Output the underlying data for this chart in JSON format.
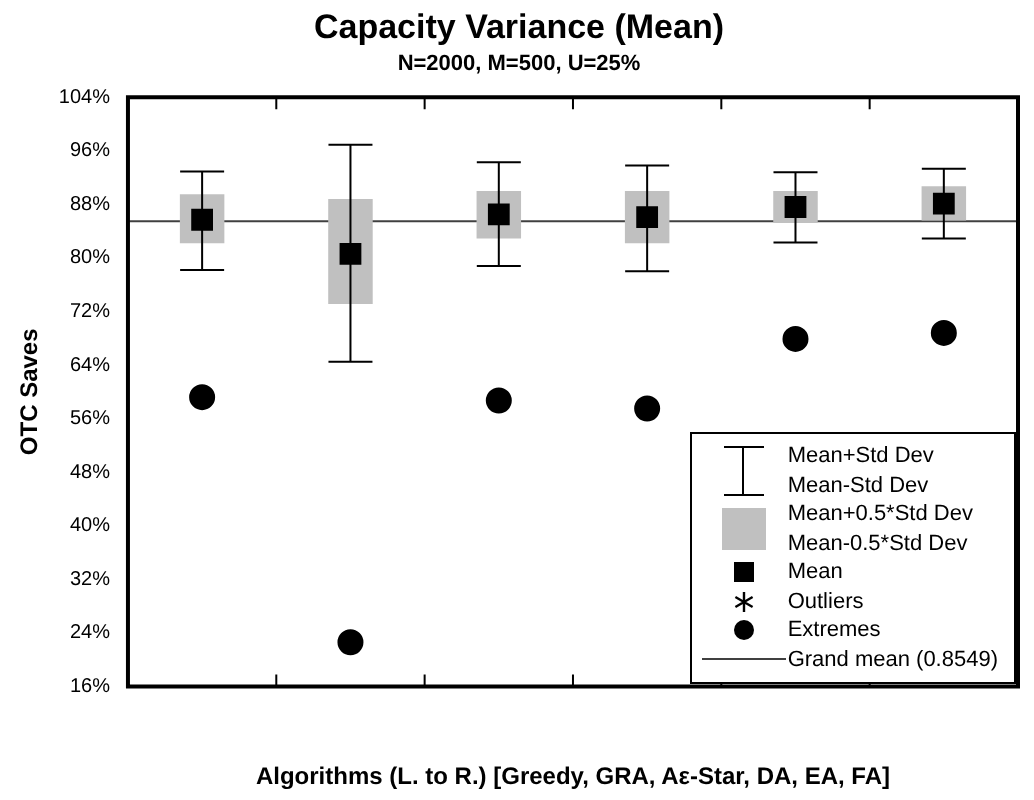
{
  "chart_data": {
    "type": "scatter",
    "title": "Capacity Variance (Mean)",
    "subtitle": "N=2000, M=500, U=25%",
    "xlabel": "Algorithms (L. to R.) [Greedy, GRA, Aε-Star, DA, EA, FA]",
    "ylabel": "OTC Saves",
    "categories": [
      null,
      null,
      null,
      null,
      null,
      null
    ],
    "annotations": [
      "Mean+Std Dev\nMean-Std Dev"
    ],
    "series": [
      {
        "name": "Mean+0.5*Std Dev\nMean-0.5*Std Dev",
        "type": "bar",
        "color": "#c0c0c0",
        "base": [
          82.2,
          73.1,
          82.9,
          82.2,
          85.2,
          85.6
        ],
        "values": [
          7.3,
          15.7,
          7.1,
          7.8,
          4.8,
          5.1
        ]
      },
      {
        "name": "Mean",
        "marker": "square",
        "color": "#000000",
        "values": [
          85.7,
          80.6,
          86.5,
          86.1,
          87.6,
          88.1
        ],
        "errors": [
          [
            78.2,
            92.9
          ],
          [
            64.5,
            96.9
          ],
          [
            78.8,
            94.3
          ],
          [
            78.0,
            93.8
          ],
          [
            82.3,
            92.8
          ],
          [
            82.9,
            93.3
          ]
        ]
      },
      {
        "name": "Outliers",
        "marker": "star",
        "color": "#000000",
        "values": [
          null,
          null,
          null,
          null,
          null,
          null
        ]
      },
      {
        "name": "Extremes",
        "marker": "circle",
        "color": "#000000",
        "values": [
          59.2,
          22.6,
          58.7,
          57.5,
          67.9,
          68.8
        ]
      }
    ],
    "ref_lines": [
      {
        "axis": "y",
        "value": 85.49,
        "label": "Grand mean (0.8549)",
        "color": "#404040"
      }
    ],
    "ylim": [
      16,
      104
    ],
    "yticks": [
      {
        "value": 16,
        "label": "16%"
      },
      {
        "value": 24,
        "label": "24%"
      },
      {
        "value": 32,
        "label": "32%"
      },
      {
        "value": 40,
        "label": "40%"
      },
      {
        "value": 48,
        "label": "48%"
      },
      {
        "value": 56,
        "label": "56%"
      },
      {
        "value": 64,
        "label": "64%"
      },
      {
        "value": 72,
        "label": "72%"
      },
      {
        "value": 80,
        "label": "80%"
      },
      {
        "value": 88,
        "label": "88%"
      },
      {
        "value": 96,
        "label": "96%"
      },
      {
        "value": 104,
        "label": "104%"
      }
    ],
    "grid": false,
    "legend": "bottom right"
  }
}
